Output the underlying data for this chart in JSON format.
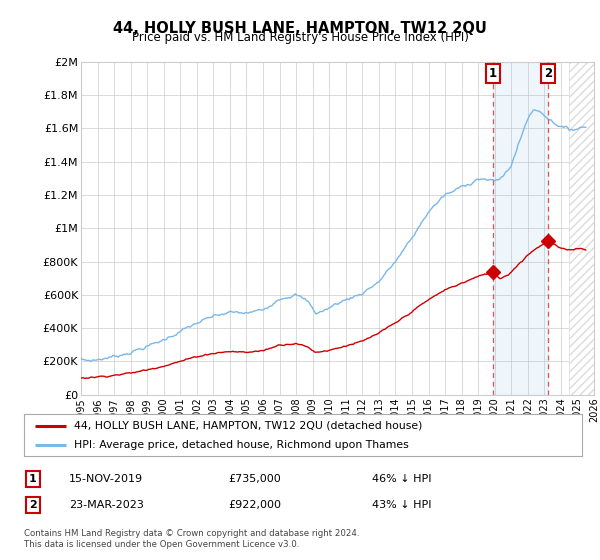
{
  "title": "44, HOLLY BUSH LANE, HAMPTON, TW12 2QU",
  "subtitle": "Price paid vs. HM Land Registry's House Price Index (HPI)",
  "legend_label1": "44, HOLLY BUSH LANE, HAMPTON, TW12 2QU (detached house)",
  "legend_label2": "HPI: Average price, detached house, Richmond upon Thames",
  "annotation1_date": "15-NOV-2019",
  "annotation1_price": "£735,000",
  "annotation1_hpi": "46% ↓ HPI",
  "annotation2_date": "23-MAR-2023",
  "annotation2_price": "£922,000",
  "annotation2_hpi": "43% ↓ HPI",
  "footer": "Contains HM Land Registry data © Crown copyright and database right 2024.\nThis data is licensed under the Open Government Licence v3.0.",
  "line1_color": "#cc0000",
  "line2_color": "#7ab8e8",
  "vline_color": "#dd5555",
  "annotation_box_color": "#cc0000",
  "background_color": "#ffffff",
  "grid_color": "#cccccc",
  "ylim": [
    0,
    2000000
  ],
  "yticks": [
    0,
    200000,
    400000,
    600000,
    800000,
    1000000,
    1200000,
    1400000,
    1600000,
    1800000,
    2000000
  ],
  "ytick_labels": [
    "£0",
    "£200K",
    "£400K",
    "£600K",
    "£800K",
    "£1M",
    "£1.2M",
    "£1.4M",
    "£1.6M",
    "£1.8M",
    "£2M"
  ],
  "sale1_x": 2019.88,
  "sale1_y": 735000,
  "sale2_x": 2023.23,
  "sale2_y": 922000,
  "xmin": 1995,
  "xmax": 2026
}
